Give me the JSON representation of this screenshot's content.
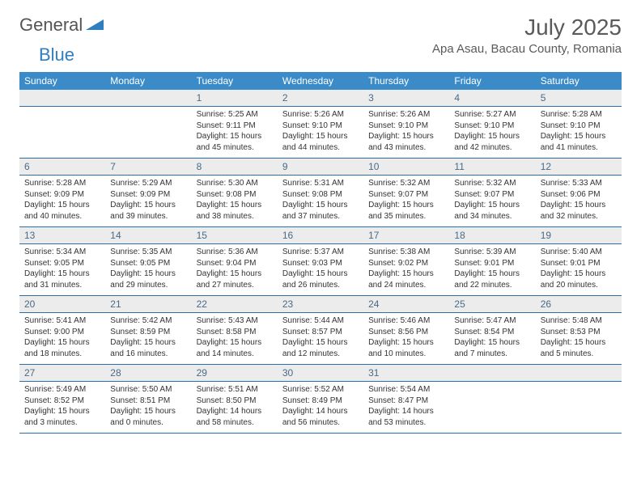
{
  "brand": {
    "name1": "General",
    "name2": "Blue"
  },
  "title": "July 2025",
  "location": "Apa Asau, Bacau County, Romania",
  "colors": {
    "header_bg": "#3b8bc9",
    "header_text": "#ffffff",
    "daynum_bg": "#ececec",
    "daynum_text": "#4a6a85",
    "border": "#2f6ea5",
    "body_text": "#333333",
    "title_text": "#5a5a5a",
    "brand_gray": "#555555",
    "brand_blue": "#2f7ec0",
    "page_bg": "#ffffff"
  },
  "fonts": {
    "base": "Arial",
    "title_size": 28,
    "header_size": 12,
    "daynum_size": 12,
    "cell_size": 10
  },
  "weekdays": [
    "Sunday",
    "Monday",
    "Tuesday",
    "Wednesday",
    "Thursday",
    "Friday",
    "Saturday"
  ],
  "weeks": [
    [
      null,
      null,
      {
        "n": "1",
        "sr": "5:25 AM",
        "ss": "9:11 PM",
        "dl": "15 hours and 45 minutes."
      },
      {
        "n": "2",
        "sr": "5:26 AM",
        "ss": "9:10 PM",
        "dl": "15 hours and 44 minutes."
      },
      {
        "n": "3",
        "sr": "5:26 AM",
        "ss": "9:10 PM",
        "dl": "15 hours and 43 minutes."
      },
      {
        "n": "4",
        "sr": "5:27 AM",
        "ss": "9:10 PM",
        "dl": "15 hours and 42 minutes."
      },
      {
        "n": "5",
        "sr": "5:28 AM",
        "ss": "9:10 PM",
        "dl": "15 hours and 41 minutes."
      }
    ],
    [
      {
        "n": "6",
        "sr": "5:28 AM",
        "ss": "9:09 PM",
        "dl": "15 hours and 40 minutes."
      },
      {
        "n": "7",
        "sr": "5:29 AM",
        "ss": "9:09 PM",
        "dl": "15 hours and 39 minutes."
      },
      {
        "n": "8",
        "sr": "5:30 AM",
        "ss": "9:08 PM",
        "dl": "15 hours and 38 minutes."
      },
      {
        "n": "9",
        "sr": "5:31 AM",
        "ss": "9:08 PM",
        "dl": "15 hours and 37 minutes."
      },
      {
        "n": "10",
        "sr": "5:32 AM",
        "ss": "9:07 PM",
        "dl": "15 hours and 35 minutes."
      },
      {
        "n": "11",
        "sr": "5:32 AM",
        "ss": "9:07 PM",
        "dl": "15 hours and 34 minutes."
      },
      {
        "n": "12",
        "sr": "5:33 AM",
        "ss": "9:06 PM",
        "dl": "15 hours and 32 minutes."
      }
    ],
    [
      {
        "n": "13",
        "sr": "5:34 AM",
        "ss": "9:05 PM",
        "dl": "15 hours and 31 minutes."
      },
      {
        "n": "14",
        "sr": "5:35 AM",
        "ss": "9:05 PM",
        "dl": "15 hours and 29 minutes."
      },
      {
        "n": "15",
        "sr": "5:36 AM",
        "ss": "9:04 PM",
        "dl": "15 hours and 27 minutes."
      },
      {
        "n": "16",
        "sr": "5:37 AM",
        "ss": "9:03 PM",
        "dl": "15 hours and 26 minutes."
      },
      {
        "n": "17",
        "sr": "5:38 AM",
        "ss": "9:02 PM",
        "dl": "15 hours and 24 minutes."
      },
      {
        "n": "18",
        "sr": "5:39 AM",
        "ss": "9:01 PM",
        "dl": "15 hours and 22 minutes."
      },
      {
        "n": "19",
        "sr": "5:40 AM",
        "ss": "9:01 PM",
        "dl": "15 hours and 20 minutes."
      }
    ],
    [
      {
        "n": "20",
        "sr": "5:41 AM",
        "ss": "9:00 PM",
        "dl": "15 hours and 18 minutes."
      },
      {
        "n": "21",
        "sr": "5:42 AM",
        "ss": "8:59 PM",
        "dl": "15 hours and 16 minutes."
      },
      {
        "n": "22",
        "sr": "5:43 AM",
        "ss": "8:58 PM",
        "dl": "15 hours and 14 minutes."
      },
      {
        "n": "23",
        "sr": "5:44 AM",
        "ss": "8:57 PM",
        "dl": "15 hours and 12 minutes."
      },
      {
        "n": "24",
        "sr": "5:46 AM",
        "ss": "8:56 PM",
        "dl": "15 hours and 10 minutes."
      },
      {
        "n": "25",
        "sr": "5:47 AM",
        "ss": "8:54 PM",
        "dl": "15 hours and 7 minutes."
      },
      {
        "n": "26",
        "sr": "5:48 AM",
        "ss": "8:53 PM",
        "dl": "15 hours and 5 minutes."
      }
    ],
    [
      {
        "n": "27",
        "sr": "5:49 AM",
        "ss": "8:52 PM",
        "dl": "15 hours and 3 minutes."
      },
      {
        "n": "28",
        "sr": "5:50 AM",
        "ss": "8:51 PM",
        "dl": "15 hours and 0 minutes."
      },
      {
        "n": "29",
        "sr": "5:51 AM",
        "ss": "8:50 PM",
        "dl": "14 hours and 58 minutes."
      },
      {
        "n": "30",
        "sr": "5:52 AM",
        "ss": "8:49 PM",
        "dl": "14 hours and 56 minutes."
      },
      {
        "n": "31",
        "sr": "5:54 AM",
        "ss": "8:47 PM",
        "dl": "14 hours and 53 minutes."
      },
      null,
      null
    ]
  ],
  "labels": {
    "sunrise": "Sunrise: ",
    "sunset": "Sunset: ",
    "daylight": "Daylight: "
  }
}
